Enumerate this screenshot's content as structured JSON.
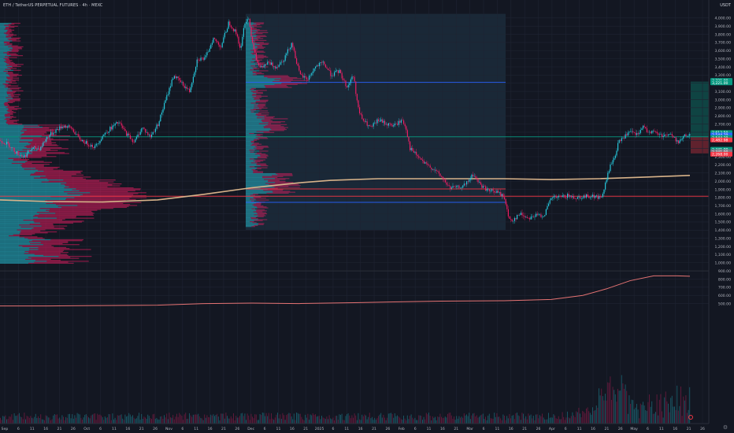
{
  "header": {
    "title": "ETH / TetherUS PERPETUAL FUTURES · 4h · MEXC",
    "currency": "USDT"
  },
  "chart_data": {
    "type": "candlestick",
    "price_axis": {
      "min": 450,
      "max": 4050,
      "ticks": [
        4000,
        3900,
        3800,
        3700,
        3600,
        3500,
        3400,
        3300,
        3200,
        3100,
        3000,
        2900,
        2800,
        2700,
        2600,
        2500,
        2400,
        2300,
        2200,
        2100,
        2000,
        1900,
        1800,
        1700,
        1600,
        1500,
        1400,
        1300,
        1200,
        1100,
        1000,
        900,
        800,
        700,
        600,
        500
      ],
      "tick_labels": [
        "4,000.00",
        "3,900.00",
        "3,800.00",
        "3,700.00",
        "3,600.00",
        "3,500.00",
        "3,400.00",
        "3,300.00",
        "3,200.00",
        "3,100.00",
        "3,000.00",
        "2,900.00",
        "2,800.00",
        "2,700.00",
        "2,600.00",
        "2,500.00",
        "2,400.00",
        "2,300.00",
        "2,200.00",
        "2,100.00",
        "2,000.00",
        "1,900.00",
        "1,800.00",
        "1,700.00",
        "1,600.00",
        "1,500.00",
        "1,400.00",
        "1,300.00",
        "1,200.00",
        "1,100.00",
        "1,000.00",
        "900.00",
        "800.00",
        "700.00",
        "600.00",
        "500.00"
      ]
    },
    "time_axis_labels": [
      "Sep",
      "6",
      "11",
      "16",
      "21",
      "26",
      "Oct",
      "6",
      "11",
      "16",
      "21",
      "26",
      "Nov",
      "6",
      "11",
      "16",
      "21",
      "26",
      "Dec",
      "6",
      "11",
      "16",
      "21",
      "2025",
      "6",
      "11",
      "16",
      "21",
      "26",
      "Feb",
      "6",
      "11",
      "16",
      "21",
      "Mar",
      "6",
      "11",
      "16",
      "21",
      "26",
      "Apr",
      "6",
      "11",
      "16",
      "21",
      "26",
      "May",
      "6",
      "11",
      "16",
      "21",
      "26"
    ],
    "price_path": [
      [
        0,
        2500
      ],
      [
        10,
        2450
      ],
      [
        20,
        2350
      ],
      [
        30,
        2300
      ],
      [
        40,
        2400
      ],
      [
        50,
        2400
      ],
      [
        60,
        2550
      ],
      [
        70,
        2620
      ],
      [
        80,
        2680
      ],
      [
        90,
        2650
      ],
      [
        100,
        2520
      ],
      [
        110,
        2460
      ],
      [
        120,
        2420
      ],
      [
        130,
        2560
      ],
      [
        140,
        2650
      ],
      [
        150,
        2720
      ],
      [
        160,
        2580
      ],
      [
        170,
        2480
      ],
      [
        180,
        2660
      ],
      [
        190,
        2540
      ],
      [
        200,
        2700
      ],
      [
        210,
        3000
      ],
      [
        220,
        3300
      ],
      [
        230,
        3200
      ],
      [
        240,
        3100
      ],
      [
        250,
        3500
      ],
      [
        260,
        3500
      ],
      [
        270,
        3750
      ],
      [
        280,
        3650
      ],
      [
        290,
        3950
      ],
      [
        300,
        3800
      ],
      [
        305,
        3600
      ],
      [
        310,
        3950
      ],
      [
        315,
        4000
      ],
      [
        320,
        3700
      ],
      [
        325,
        3500
      ],
      [
        330,
        3380
      ],
      [
        340,
        3450
      ],
      [
        350,
        3400
      ],
      [
        360,
        3500
      ],
      [
        370,
        3700
      ],
      [
        380,
        3300
      ],
      [
        390,
        3250
      ],
      [
        400,
        3400
      ],
      [
        410,
        3450
      ],
      [
        420,
        3300
      ],
      [
        430,
        3350
      ],
      [
        440,
        3150
      ],
      [
        448,
        3300
      ],
      [
        455,
        2850
      ],
      [
        460,
        2750
      ],
      [
        470,
        2650
      ],
      [
        480,
        2750
      ],
      [
        490,
        2700
      ],
      [
        500,
        2680
      ],
      [
        510,
        2750
      ],
      [
        515,
        2650
      ],
      [
        520,
        2400
      ],
      [
        530,
        2300
      ],
      [
        540,
        2200
      ],
      [
        550,
        2150
      ],
      [
        560,
        2050
      ],
      [
        570,
        1920
      ],
      [
        580,
        1920
      ],
      [
        590,
        1950
      ],
      [
        600,
        2080
      ],
      [
        610,
        1950
      ],
      [
        620,
        1880
      ],
      [
        630,
        1870
      ],
      [
        640,
        1800
      ],
      [
        645,
        1550
      ],
      [
        650,
        1520
      ],
      [
        660,
        1600
      ],
      [
        670,
        1550
      ],
      [
        680,
        1580
      ],
      [
        690,
        1580
      ],
      [
        700,
        1800
      ],
      [
        710,
        1800
      ],
      [
        720,
        1820
      ],
      [
        730,
        1800
      ],
      [
        740,
        1810
      ],
      [
        750,
        1820
      ],
      [
        760,
        1800
      ],
      [
        765,
        1830
      ],
      [
        770,
        2050
      ],
      [
        775,
        2200
      ],
      [
        780,
        2300
      ],
      [
        785,
        2480
      ],
      [
        790,
        2530
      ],
      [
        800,
        2600
      ],
      [
        810,
        2560
      ],
      [
        815,
        2680
      ],
      [
        820,
        2620
      ],
      [
        830,
        2600
      ],
      [
        840,
        2560
      ],
      [
        850,
        2580
      ],
      [
        860,
        2480
      ],
      [
        870,
        2560
      ],
      [
        876,
        2560
      ]
    ],
    "moving_average": [
      [
        0,
        1770
      ],
      [
        60,
        1750
      ],
      [
        130,
        1745
      ],
      [
        200,
        1770
      ],
      [
        260,
        1840
      ],
      [
        320,
        1920
      ],
      [
        380,
        1980
      ],
      [
        420,
        2010
      ],
      [
        480,
        2030
      ],
      [
        560,
        2030
      ],
      [
        640,
        2030
      ],
      [
        700,
        2020
      ],
      [
        760,
        2030
      ],
      [
        820,
        2050
      ],
      [
        876,
        2070
      ]
    ],
    "volume_ma": [
      [
        0,
        470
      ],
      [
        60,
        470
      ],
      [
        120,
        475
      ],
      [
        200,
        480
      ],
      [
        260,
        500
      ],
      [
        320,
        505
      ],
      [
        380,
        500
      ],
      [
        450,
        510
      ],
      [
        500,
        520
      ],
      [
        560,
        530
      ],
      [
        640,
        535
      ],
      [
        700,
        550
      ],
      [
        740,
        600
      ],
      [
        770,
        680
      ],
      [
        800,
        780
      ],
      [
        830,
        840
      ],
      [
        860,
        840
      ],
      [
        876,
        835
      ]
    ],
    "horizontal_levels": [
      {
        "price": 3210,
        "color": "#2962ff",
        "x_from": 312,
        "x_to": 642
      },
      {
        "price": 1815,
        "color": "#f23645",
        "x_from": 0,
        "x_to": 932
      },
      {
        "price": 1905,
        "color": "#f23645",
        "x_from": 312,
        "x_to": 642
      },
      {
        "price": 1740,
        "color": "#2962ff",
        "x_from": 312,
        "x_to": 642
      },
      {
        "price": 2544,
        "color": "#089981",
        "x_from": 0,
        "x_to": 932
      }
    ],
    "price_labels": [
      {
        "price": 3235,
        "text": "3,221.00",
        "bg": "#089981"
      },
      {
        "price": 3205,
        "text": "3,221.00",
        "bg": "#089981"
      },
      {
        "price": 2595,
        "text": "2,612.50",
        "bg": "#089981"
      },
      {
        "price": 2565,
        "text": "2,544.29",
        "bg": "#2962ff"
      },
      {
        "price": 2535,
        "text": "2,544.29",
        "bg": "#089981"
      },
      {
        "price": 2505,
        "text": "2,482.98",
        "bg": "#f23645"
      },
      {
        "price": 2390,
        "text": "2,341.00",
        "bg": "#089981"
      },
      {
        "price": 2360,
        "text": "2,341.00",
        "bg": "#787b86"
      },
      {
        "price": 2330,
        "text": "2,268.00",
        "bg": "#f23645"
      }
    ],
    "colors": {
      "up": "#26c6da",
      "down": "#e91e63",
      "ma": "#d8b38a",
      "volume_ma": "#e57373",
      "level_blue": "#2962ff",
      "level_red": "#f23645",
      "background": "#131722",
      "grid": "#1f2433"
    }
  }
}
